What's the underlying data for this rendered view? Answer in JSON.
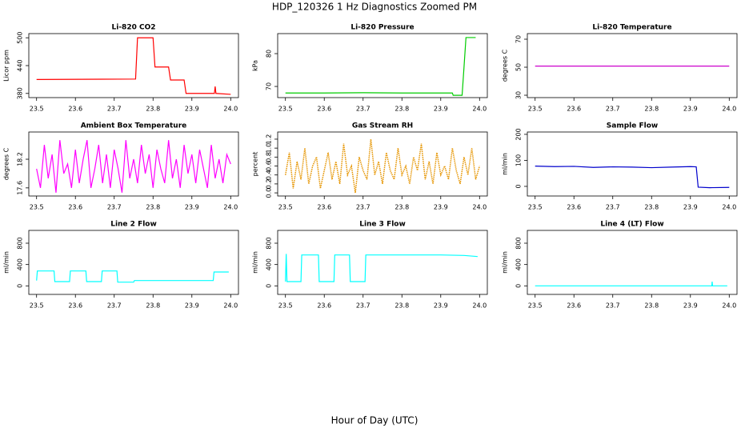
{
  "title": "HDP_120326  1 Hz Diagnostics Zoomed PM",
  "xlabel": "Hour of Day (UTC)",
  "chart_data": [
    {
      "type": "line",
      "title": "Li-820 CO2",
      "ylabel": "Licor ppm",
      "color": "#ff0000",
      "x": [
        23.5,
        23.755,
        23.76,
        23.8,
        23.805,
        23.84,
        23.845,
        23.88,
        23.885,
        23.958,
        23.96,
        23.962,
        24.0
      ],
      "values": [
        410,
        411,
        500,
        500,
        437,
        437,
        409,
        409,
        380,
        380,
        395,
        380,
        378
      ],
      "xlim": [
        23.48,
        24.02
      ],
      "xticks": [
        23.5,
        23.6,
        23.7,
        23.8,
        23.9,
        {
          "value": 24,
          "label": "24.0"
        }
      ],
      "ylim": [
        371,
        509
      ],
      "yticks": [
        380,
        440,
        500
      ]
    },
    {
      "type": "line",
      "title": "Li-820 Pressure",
      "ylabel": "kPa",
      "color": "#00cc00",
      "x": [
        23.5,
        23.6,
        23.7,
        23.8,
        23.93,
        23.932,
        23.955,
        23.96,
        23.965,
        23.99
      ],
      "values": [
        68.0,
        68.0,
        68.1,
        68.0,
        68.0,
        67.3,
        67.3,
        76,
        84.9,
        84.9
      ],
      "xlim": [
        23.48,
        24.02
      ],
      "xticks": [
        23.5,
        23.6,
        23.7,
        23.8,
        23.9,
        {
          "value": 24,
          "label": "24.0"
        }
      ],
      "ylim": [
        66.6,
        86.1
      ],
      "yticks": [
        70,
        80
      ]
    },
    {
      "type": "line",
      "title": "Li-820 Temperature",
      "ylabel": "degrees C",
      "color": "#cc00cc",
      "x": [
        23.5,
        24.0
      ],
      "values": [
        50.8,
        50.8
      ],
      "xlim": [
        23.48,
        24.02
      ],
      "xticks": [
        23.5,
        23.6,
        23.7,
        23.8,
        23.9,
        {
          "value": 24,
          "label": "24.0"
        }
      ],
      "ylim": [
        28.3,
        74
      ],
      "yticks": [
        30,
        50,
        70
      ]
    },
    {
      "type": "line",
      "title": "Ambient Box Temperature",
      "ylabel": "degrees C",
      "color": "#ff00ff",
      "x": [
        23.5,
        23.51,
        23.52,
        23.53,
        23.54,
        23.55,
        23.56,
        23.57,
        23.58,
        23.59,
        23.6,
        23.61,
        23.62,
        23.63,
        23.64,
        23.65,
        23.66,
        23.67,
        23.68,
        23.69,
        23.7,
        23.71,
        23.72,
        23.73,
        23.74,
        23.75,
        23.76,
        23.77,
        23.78,
        23.79,
        23.8,
        23.81,
        23.82,
        23.83,
        23.84,
        23.85,
        23.86,
        23.87,
        23.88,
        23.89,
        23.9,
        23.91,
        23.92,
        23.93,
        23.94,
        23.95,
        23.96,
        23.97,
        23.98,
        23.99,
        24.0
      ],
      "values": [
        18.0,
        17.6,
        18.5,
        17.8,
        18.3,
        17.5,
        18.6,
        17.9,
        18.1,
        17.6,
        18.4,
        17.7,
        18.2,
        18.6,
        17.6,
        18.0,
        18.5,
        17.7,
        18.3,
        17.6,
        18.4,
        18.0,
        17.5,
        18.6,
        17.8,
        18.2,
        17.7,
        18.5,
        17.9,
        18.3,
        17.6,
        18.4,
        18.0,
        17.7,
        18.6,
        17.8,
        18.2,
        17.6,
        18.5,
        17.9,
        18.3,
        17.7,
        18.4,
        18.0,
        17.6,
        18.5,
        17.8,
        18.2,
        17.7,
        18.3,
        18.1
      ],
      "xlim": [
        23.48,
        24.02
      ],
      "xticks": [
        23.5,
        23.6,
        23.7,
        23.8,
        23.9,
        {
          "value": 24,
          "label": "24.0"
        }
      ],
      "ylim": [
        17.43,
        18.77
      ],
      "yticks": [
        17.6,
        18.2
      ]
    },
    {
      "type": "line",
      "title": "Gas Stream RH",
      "ylabel": "percent",
      "color": "#e69500",
      "linestyle": "dotted",
      "x": [
        23.5,
        23.51,
        23.52,
        23.53,
        23.54,
        23.55,
        23.56,
        23.57,
        23.58,
        23.59,
        23.6,
        23.61,
        23.62,
        23.63,
        23.64,
        23.65,
        23.66,
        23.67,
        23.68,
        23.69,
        23.7,
        23.71,
        23.72,
        23.73,
        23.74,
        23.75,
        23.76,
        23.77,
        23.78,
        23.79,
        23.8,
        23.81,
        23.82,
        23.83,
        23.84,
        23.85,
        23.86,
        23.87,
        23.88,
        23.89,
        23.9,
        23.91,
        23.92,
        23.93,
        23.94,
        23.95,
        23.96,
        23.97,
        23.98,
        23.99,
        24.0
      ],
      "values": [
        0.4,
        0.9,
        0.1,
        0.7,
        0.3,
        1.0,
        0.2,
        0.6,
        0.8,
        0.1,
        0.5,
        0.9,
        0.3,
        0.7,
        0.2,
        1.1,
        0.4,
        0.6,
        0.0,
        0.8,
        0.5,
        0.3,
        1.2,
        0.4,
        0.7,
        0.2,
        0.9,
        0.5,
        0.3,
        1.0,
        0.4,
        0.6,
        0.2,
        0.8,
        0.5,
        1.1,
        0.3,
        0.7,
        0.2,
        0.9,
        0.4,
        0.6,
        0.3,
        1.0,
        0.5,
        0.2,
        0.8,
        0.4,
        1.0,
        0.3,
        0.6
      ],
      "xlim": [
        23.48,
        24.02
      ],
      "xticks": [
        23.5,
        23.6,
        23.7,
        23.8,
        23.9,
        {
          "value": 24,
          "label": "24.0"
        }
      ],
      "ylim": [
        -0.07,
        1.36
      ],
      "yticks": [
        {
          "value": 0,
          "label": "0.0"
        },
        0.2,
        0.4,
        0.6,
        0.8,
        {
          "value": 1,
          "label": "1.0"
        },
        1.2
      ]
    },
    {
      "type": "line",
      "title": "Sample Flow",
      "ylabel": "ml/min",
      "color": "#0000cc",
      "x": [
        23.5,
        23.55,
        23.6,
        23.65,
        23.7,
        23.75,
        23.8,
        23.85,
        23.9,
        23.915,
        23.92,
        23.95,
        24.0
      ],
      "values": [
        78,
        76,
        77,
        73,
        75,
        74,
        72,
        74,
        76,
        75,
        -3,
        -5,
        -4
      ],
      "xlim": [
        23.48,
        24.02
      ],
      "xticks": [
        23.5,
        23.6,
        23.7,
        23.8,
        23.9,
        {
          "value": 24,
          "label": "24.0"
        }
      ],
      "ylim": [
        -37,
        209
      ],
      "yticks": [
        0,
        100,
        200
      ]
    },
    {
      "type": "line",
      "title": "Line 2 Flow",
      "ylabel": "ml/min",
      "color": "#00ffff",
      "x": [
        23.5,
        23.502,
        23.545,
        23.547,
        23.585,
        23.587,
        23.627,
        23.629,
        23.667,
        23.669,
        23.707,
        23.709,
        23.75,
        23.752,
        23.955,
        23.957,
        23.995
      ],
      "values": [
        100,
        280,
        280,
        80,
        80,
        280,
        280,
        80,
        80,
        280,
        280,
        70,
        70,
        100,
        100,
        260,
        260
      ],
      "xlim": [
        23.48,
        24.02
      ],
      "xticks": [
        23.5,
        23.6,
        23.7,
        23.8,
        23.9,
        {
          "value": 24,
          "label": "24.0"
        }
      ],
      "ylim": [
        -160,
        1040
      ],
      "yticks": [
        0,
        400,
        800
      ]
    },
    {
      "type": "line",
      "title": "Line 3 Flow",
      "ylabel": "ml/min",
      "color": "#00ffff",
      "x": [
        23.5,
        23.502,
        23.504,
        23.54,
        23.542,
        23.585,
        23.587,
        23.625,
        23.627,
        23.665,
        23.667,
        23.705,
        23.707,
        23.9,
        23.96,
        23.995
      ],
      "values": [
        80,
        600,
        80,
        80,
        580,
        580,
        80,
        80,
        580,
        580,
        80,
        80,
        580,
        580,
        570,
        550
      ],
      "xlim": [
        23.48,
        24.02
      ],
      "xticks": [
        23.5,
        23.6,
        23.7,
        23.8,
        23.9,
        {
          "value": 24,
          "label": "24.0"
        }
      ],
      "ylim": [
        -160,
        1040
      ],
      "yticks": [
        0,
        400,
        800
      ]
    },
    {
      "type": "line",
      "title": "Line 4 (LT) Flow",
      "ylabel": "ml/min",
      "color": "#00ffff",
      "x": [
        23.5,
        23.955,
        23.956,
        23.957,
        23.958,
        23.995
      ],
      "values": [
        0,
        0,
        80,
        0,
        0,
        0
      ],
      "xlim": [
        23.48,
        24.02
      ],
      "xticks": [
        23.5,
        23.6,
        23.7,
        23.8,
        23.9,
        {
          "value": 24,
          "label": "24.0"
        }
      ],
      "ylim": [
        -160,
        1040
      ],
      "yticks": [
        0,
        400,
        800
      ]
    }
  ]
}
